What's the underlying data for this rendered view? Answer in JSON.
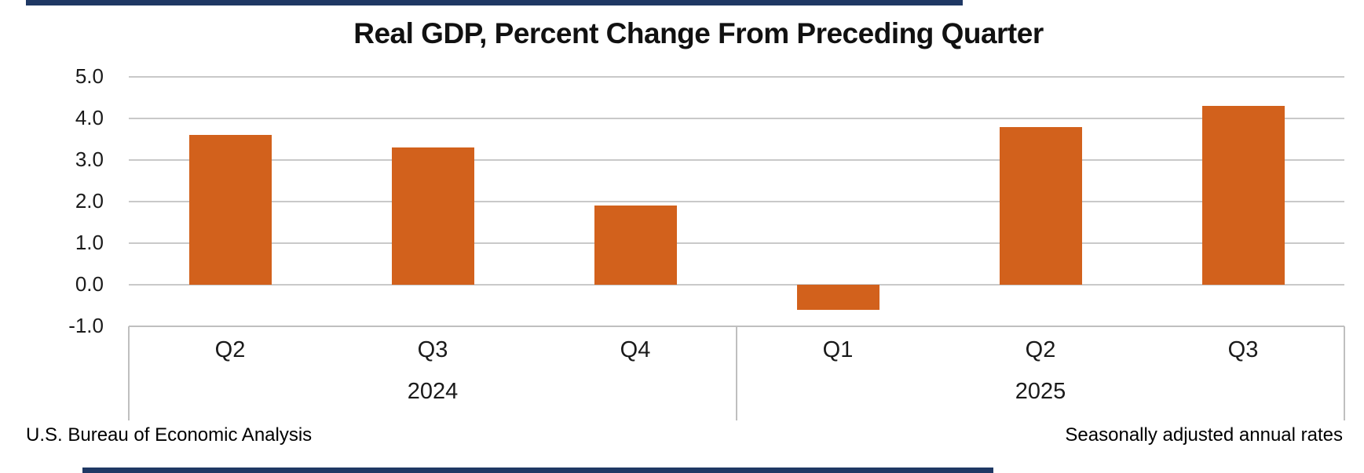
{
  "title": "Real GDP, Percent Change From Preceding Quarter",
  "footer": {
    "source_note": "U.S. Bureau of Economic Analysis",
    "rate_note": "Seasonally adjusted annual rates"
  },
  "colors": {
    "bar": "#D2611C",
    "gridline": "#C9C9C9",
    "axis_border": "#BFBFBF",
    "text": "#1A1A1A",
    "edge_rule": "#1F3864"
  },
  "chart_data": {
    "type": "bar",
    "title": "Real GDP, Percent Change From Preceding Quarter",
    "categories": [
      "Q2",
      "Q3",
      "Q4",
      "Q1",
      "Q2",
      "Q3"
    ],
    "groups": [
      {
        "label": "2024",
        "span": 3
      },
      {
        "label": "2025",
        "span": 3
      }
    ],
    "values": [
      3.6,
      3.3,
      1.9,
      -0.6,
      3.8,
      4.3
    ],
    "xlabel": "",
    "ylabel": "",
    "ylim": [
      -1.0,
      5.0
    ],
    "ytick_interval": 1.0,
    "ytick_labels": [
      "5.0",
      "4.0",
      "3.0",
      "2.0",
      "1.0",
      "0.0",
      "-1.0"
    ],
    "grid": true,
    "legend_position": "none",
    "bar_color": "#D2611C"
  }
}
